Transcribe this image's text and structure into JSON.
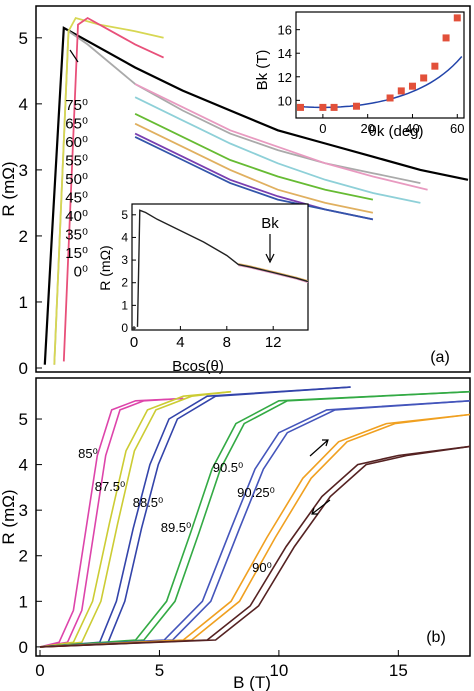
{
  "chart_data": [
    {
      "panel": "(a)",
      "type": "line",
      "ylabel": "R (mΩ)",
      "xlabel": "",
      "xlim": [
        0,
        18
      ],
      "ylim": [
        0,
        5.3
      ],
      "yticks": [
        0,
        1,
        2,
        3,
        4,
        5
      ],
      "legend": [
        "75⁰",
        "65⁰",
        "60⁰",
        "55⁰",
        "50⁰",
        "45⁰",
        "40⁰",
        "35⁰",
        "15⁰",
        "0⁰"
      ],
      "series": [
        {
          "name": "0⁰",
          "color": "#000000",
          "x": [
            0.2,
            0.5,
            1,
            2,
            4,
            6,
            8,
            10,
            12,
            14,
            16,
            18
          ],
          "y": [
            0.05,
            2.0,
            5.15,
            4.95,
            4.55,
            4.2,
            3.9,
            3.6,
            3.4,
            3.2,
            3.0,
            2.85
          ]
        },
        {
          "name": "15⁰",
          "color": "#aaaaaa",
          "x": [
            0.6,
            1.2,
            2,
            4,
            6,
            8,
            10,
            12,
            14,
            16
          ],
          "y": [
            0.05,
            5.1,
            4.9,
            4.3,
            3.9,
            3.55,
            3.3,
            3.1,
            2.95,
            2.8
          ]
        },
        {
          "name": "35⁰",
          "color": "#d7d753",
          "x": [
            0.6,
            1.2,
            1.5,
            2.5,
            4,
            5.2
          ],
          "y": [
            0.05,
            5.1,
            5.3,
            5.2,
            5.1,
            5.0
          ]
        },
        {
          "name": "40⁰",
          "color": "#e8507a",
          "x": [
            1.0,
            1.6,
            2,
            3,
            4,
            5.2
          ],
          "y": [
            0.1,
            5.2,
            5.3,
            5.1,
            4.9,
            4.7
          ]
        },
        {
          "name": "45⁰",
          "color": "#e89ac0",
          "x": [
            4,
            6,
            8,
            10,
            12,
            14,
            16.3
          ],
          "y": [
            4.3,
            3.95,
            3.6,
            3.35,
            3.1,
            2.9,
            2.7
          ]
        },
        {
          "name": "50⁰",
          "color": "#8ed0d8",
          "x": [
            4,
            6,
            8,
            10,
            12,
            14,
            16
          ],
          "y": [
            4.1,
            3.75,
            3.4,
            3.1,
            2.85,
            2.65,
            2.5
          ]
        },
        {
          "name": "55⁰",
          "color": "#66bb33",
          "x": [
            4,
            6,
            8,
            10,
            12,
            14
          ],
          "y": [
            3.85,
            3.5,
            3.15,
            2.9,
            2.7,
            2.55
          ]
        },
        {
          "name": "60⁰",
          "color": "#e0b060",
          "x": [
            4,
            6,
            8,
            10,
            12,
            14
          ],
          "y": [
            3.7,
            3.35,
            3.0,
            2.7,
            2.5,
            2.35
          ]
        },
        {
          "name": "65⁰",
          "color": "#7a3fb0",
          "x": [
            4,
            6,
            8,
            10,
            12,
            14
          ],
          "y": [
            3.55,
            3.2,
            2.85,
            2.6,
            2.4,
            2.25
          ]
        },
        {
          "name": "75⁰",
          "color": "#3355aa",
          "x": [
            4,
            6,
            8,
            10,
            12,
            14
          ],
          "y": [
            3.5,
            3.15,
            2.8,
            2.55,
            2.4,
            2.25
          ]
        }
      ],
      "annotation": "(a)"
    },
    {
      "panel": "inset-top",
      "type": "scatter",
      "xlabel": "θk (deg)",
      "ylabel": "Bk (T)",
      "xticks": [
        0,
        20,
        40,
        60
      ],
      "yticks": [
        10,
        12,
        14,
        16
      ],
      "xlim": [
        -12,
        63
      ],
      "ylim": [
        8.5,
        17.5
      ],
      "points": {
        "x": [
          -10,
          0,
          5,
          15,
          30,
          35,
          40,
          45,
          50,
          55,
          60
        ],
        "y": [
          9.4,
          9.4,
          9.4,
          9.5,
          10.2,
          10.8,
          11.2,
          11.9,
          12.9,
          15.3,
          17.0
        ]
      }
    },
    {
      "panel": "inset-bottom",
      "type": "line",
      "xlabel": "Bcos(θ)",
      "ylabel": "R (mΩ)",
      "xticks": [
        0,
        4,
        8,
        12
      ],
      "yticks": [
        0,
        1,
        2,
        3,
        4,
        5
      ],
      "xlim": [
        0,
        15
      ],
      "ylim": [
        0,
        5.3
      ],
      "annotation": "Bk",
      "series": [
        {
          "name": "",
          "x": [
            0.3,
            0.5,
            1,
            2,
            4,
            6,
            8,
            9,
            10,
            12,
            14,
            15
          ],
          "y": [
            0.05,
            5.2,
            5.1,
            4.8,
            4.3,
            3.8,
            3.2,
            2.8,
            2.7,
            2.45,
            2.2,
            2.05
          ]
        }
      ]
    },
    {
      "panel": "(b)",
      "type": "line",
      "xlabel": "B (T)",
      "ylabel": "R (mΩ)",
      "xticks": [
        0,
        5,
        10,
        15
      ],
      "yticks": [
        0,
        1,
        2,
        3,
        4,
        5
      ],
      "xlim": [
        0,
        18
      ],
      "ylim": [
        -0.2,
        5.9
      ],
      "labels": [
        "85⁰",
        "87.5⁰",
        "88.5⁰",
        "89.5⁰",
        "90.5⁰",
        "90.25⁰",
        "90⁰"
      ],
      "series": [
        {
          "name": "85⁰",
          "color": "#dd44aa",
          "x": [
            0,
            0.8,
            1.4,
            1.9,
            2.4,
            3.0,
            4.0,
            6.0
          ],
          "y": [
            0,
            0.1,
            0.8,
            2.5,
            4.2,
            5.2,
            5.4,
            5.45
          ]
        },
        {
          "name": "87.5⁰",
          "color": "#cccc33",
          "x": [
            0,
            1.4,
            2.2,
            2.9,
            3.6,
            4.5,
            6.0,
            8.0
          ],
          "y": [
            0,
            0.1,
            1.0,
            2.7,
            4.3,
            5.2,
            5.5,
            5.6
          ]
        },
        {
          "name": "88.5⁰",
          "color": "#3344aa",
          "x": [
            0,
            2.5,
            3.2,
            3.9,
            4.6,
            5.4,
            7.0,
            13.0
          ],
          "y": [
            0,
            0.1,
            1.0,
            2.6,
            4.0,
            5.0,
            5.5,
            5.7
          ]
        },
        {
          "name": "89.5⁰",
          "color": "#33aa44",
          "x": [
            0,
            4.0,
            5.3,
            6.3,
            7.2,
            8.2,
            10,
            18
          ],
          "y": [
            0,
            0.15,
            1.0,
            2.5,
            3.9,
            4.9,
            5.4,
            5.6
          ]
        },
        {
          "name": "90.5⁰",
          "color": "#4455bb",
          "x": [
            0,
            5.2,
            6.8,
            8.0,
            9.0,
            10.0,
            12,
            18
          ],
          "y": [
            0,
            0.15,
            1.0,
            2.6,
            3.9,
            4.7,
            5.2,
            5.4
          ]
        },
        {
          "name": "90.25⁰",
          "color": "#f0a020",
          "x": [
            0,
            6.0,
            8.0,
            9.5,
            11.0,
            12.5,
            14.5,
            18
          ],
          "y": [
            0,
            0.15,
            1.0,
            2.4,
            3.7,
            4.5,
            4.9,
            5.1
          ]
        },
        {
          "name": "90⁰",
          "color": "#552222",
          "x": [
            0,
            7.0,
            8.8,
            10.3,
            11.8,
            13.3,
            15.0,
            18
          ],
          "y": [
            0,
            0.15,
            0.9,
            2.2,
            3.3,
            4.0,
            4.2,
            4.4
          ]
        }
      ],
      "annotation": "(b)"
    }
  ]
}
